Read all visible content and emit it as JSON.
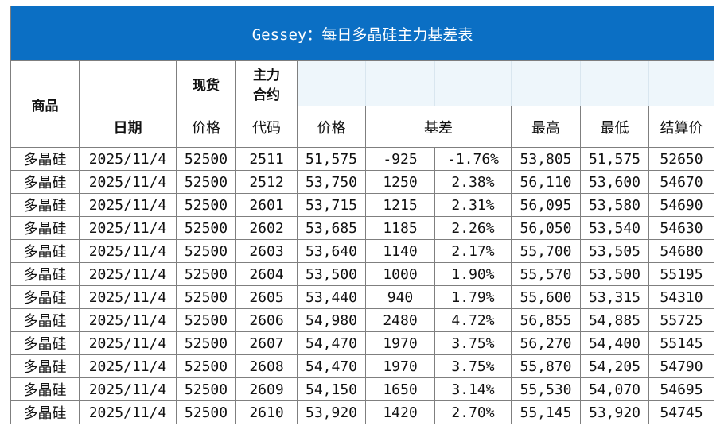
{
  "title": "Gessey：每日多晶硅主力基差表",
  "headers": {
    "product": "商品",
    "date": "日期",
    "spot": "现货",
    "spot_price": "价格",
    "main_contract_line1": "主力",
    "main_contract_line2": "合约",
    "code": "代码",
    "price": "价格",
    "basis": "基差",
    "high": "最高",
    "low": "最低",
    "settle": "结算价"
  },
  "colors": {
    "title_bg": "#0b6fc4",
    "negative": "#1a9e3a",
    "positive": "#e0201c",
    "product": "#1f3fcf",
    "date": "#3f6ad8"
  },
  "rows": [
    {
      "product": "多晶硅",
      "date": "2025/11/4",
      "spot": "52500",
      "code": "2511",
      "price": "51,575",
      "basis": "-925",
      "basis_pct": "-1.76%",
      "high": "53,805",
      "low": "51,575",
      "settle": "52650",
      "sign": "neg"
    },
    {
      "product": "多晶硅",
      "date": "2025/11/4",
      "spot": "52500",
      "code": "2512",
      "price": "53,750",
      "basis": "1250",
      "basis_pct": "2.38%",
      "high": "56,110",
      "low": "53,600",
      "settle": "54670",
      "sign": "pos"
    },
    {
      "product": "多晶硅",
      "date": "2025/11/4",
      "spot": "52500",
      "code": "2601",
      "price": "53,715",
      "basis": "1215",
      "basis_pct": "2.31%",
      "high": "56,095",
      "low": "53,580",
      "settle": "54690",
      "sign": "pos"
    },
    {
      "product": "多晶硅",
      "date": "2025/11/4",
      "spot": "52500",
      "code": "2602",
      "price": "53,685",
      "basis": "1185",
      "basis_pct": "2.26%",
      "high": "56,050",
      "low": "53,540",
      "settle": "54630",
      "sign": "pos"
    },
    {
      "product": "多晶硅",
      "date": "2025/11/4",
      "spot": "52500",
      "code": "2603",
      "price": "53,640",
      "basis": "1140",
      "basis_pct": "2.17%",
      "high": "55,700",
      "low": "53,505",
      "settle": "54680",
      "sign": "pos"
    },
    {
      "product": "多晶硅",
      "date": "2025/11/4",
      "spot": "52500",
      "code": "2604",
      "price": "53,500",
      "basis": "1000",
      "basis_pct": "1.90%",
      "high": "55,570",
      "low": "53,500",
      "settle": "55195",
      "sign": "pos"
    },
    {
      "product": "多晶硅",
      "date": "2025/11/4",
      "spot": "52500",
      "code": "2605",
      "price": "53,440",
      "basis": "940",
      "basis_pct": "1.79%",
      "high": "55,600",
      "low": "53,315",
      "settle": "54310",
      "sign": "pos"
    },
    {
      "product": "多晶硅",
      "date": "2025/11/4",
      "spot": "52500",
      "code": "2606",
      "price": "54,980",
      "basis": "2480",
      "basis_pct": "4.72%",
      "high": "56,855",
      "low": "54,885",
      "settle": "55725",
      "sign": "pos"
    },
    {
      "product": "多晶硅",
      "date": "2025/11/4",
      "spot": "52500",
      "code": "2607",
      "price": "54,470",
      "basis": "1970",
      "basis_pct": "3.75%",
      "high": "56,270",
      "low": "54,400",
      "settle": "55145",
      "sign": "pos"
    },
    {
      "product": "多晶硅",
      "date": "2025/11/4",
      "spot": "52500",
      "code": "2608",
      "price": "54,470",
      "basis": "1970",
      "basis_pct": "3.75%",
      "high": "55,870",
      "low": "54,205",
      "settle": "54790",
      "sign": "pos"
    },
    {
      "product": "多晶硅",
      "date": "2025/11/4",
      "spot": "52500",
      "code": "2609",
      "price": "54,150",
      "basis": "1650",
      "basis_pct": "3.14%",
      "high": "55,530",
      "low": "54,070",
      "settle": "54695",
      "sign": "pos"
    },
    {
      "product": "多晶硅",
      "date": "2025/11/4",
      "spot": "52500",
      "code": "2610",
      "price": "53,920",
      "basis": "1420",
      "basis_pct": "2.70%",
      "high": "55,145",
      "low": "53,920",
      "settle": "54745",
      "sign": "pos"
    }
  ]
}
